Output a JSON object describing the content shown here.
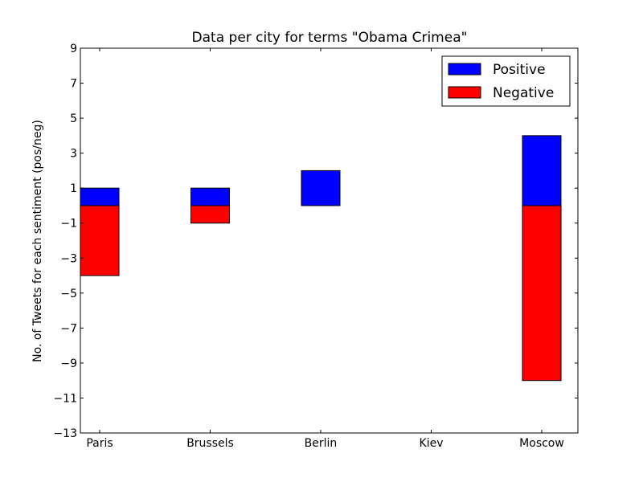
{
  "chart_data": {
    "type": "bar",
    "title": "Data per city for terms \"Obama Crimea\"",
    "xlabel": "",
    "ylabel": "No. of Tweets for each sentiment (pos/neg)",
    "categories": [
      "Paris",
      "Brussels",
      "Berlin",
      "Kiev",
      "Moscow"
    ],
    "series": [
      {
        "name": "Positive",
        "color": "#0000ff",
        "values": [
          1,
          1,
          2,
          0,
          4
        ]
      },
      {
        "name": "Negative",
        "color": "#ff0000",
        "values": [
          -4,
          -1,
          0,
          0,
          -10
        ]
      }
    ],
    "ylim": [
      -13,
      9
    ],
    "yticks": [
      "9",
      "7",
      "5",
      "3",
      "1",
      "−1",
      "−3",
      "−5",
      "−7",
      "−9",
      "−11",
      "−13"
    ],
    "yticks_values": [
      9,
      7,
      5,
      3,
      1,
      -1,
      -3,
      -5,
      -7,
      -9,
      -11,
      -13
    ],
    "grid": false,
    "legend_position": "top-right"
  }
}
